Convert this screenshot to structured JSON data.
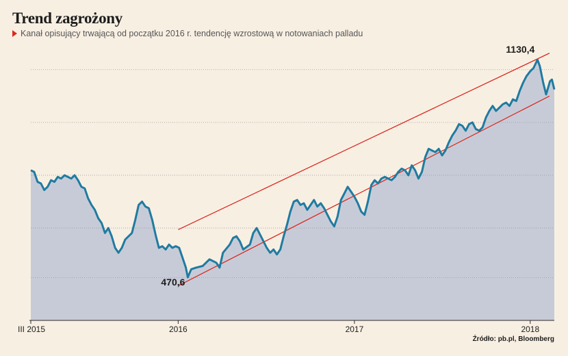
{
  "header": {
    "title": "Trend zagrożony",
    "subtitle": "Kanał opisujący trwającą od początku 2016 r. tendencję wzrostową w notowaniach palladu"
  },
  "source": "Źródło: pb.pl, Bloomberg",
  "colors": {
    "background": "#f8efe3",
    "area": "#c7cbd8",
    "line": "#1f7ba0",
    "channel": "#d92b20",
    "grid": "#9a9a9a"
  },
  "chart_data": {
    "type": "area",
    "title": "Trend zagrożony",
    "x_ticks": [
      "III 2015",
      "2016",
      "2017",
      "2018"
    ],
    "x_tick_dates": [
      "2015-03-01",
      "2016-01-01",
      "2017-01-01",
      "2018-01-01"
    ],
    "x_range": [
      "2015-03-01",
      "2018-02-20"
    ],
    "ylim": [
      340,
      1170
    ],
    "grid_y": [
      470,
      620,
      780,
      940,
      1100
    ],
    "grid": "horizontal dotted",
    "annotations": [
      {
        "text": "470,6",
        "date": "2016-01-21",
        "value": 470.6
      },
      {
        "text": "1130,4",
        "date": "2018-01-16",
        "value": 1130.4
      }
    ],
    "channel_lines": [
      {
        "name": "upper",
        "start": {
          "date": "2016-01-01",
          "value": 615
        },
        "end": {
          "date": "2018-02-10",
          "value": 1150
        }
      },
      {
        "name": "lower",
        "start": {
          "date": "2016-01-01",
          "value": 445
        },
        "end": {
          "date": "2018-02-10",
          "value": 1020
        }
      }
    ],
    "series": [
      {
        "points": [
          [
            "2015-03-01",
            795
          ],
          [
            "2015-03-08",
            790
          ],
          [
            "2015-03-15",
            760
          ],
          [
            "2015-03-22",
            755
          ],
          [
            "2015-03-29",
            735
          ],
          [
            "2015-04-05",
            745
          ],
          [
            "2015-04-12",
            765
          ],
          [
            "2015-04-19",
            760
          ],
          [
            "2015-04-26",
            775
          ],
          [
            "2015-05-03",
            770
          ],
          [
            "2015-05-10",
            780
          ],
          [
            "2015-05-17",
            775
          ],
          [
            "2015-05-24",
            770
          ],
          [
            "2015-05-31",
            780
          ],
          [
            "2015-06-07",
            765
          ],
          [
            "2015-06-14",
            745
          ],
          [
            "2015-06-21",
            740
          ],
          [
            "2015-06-28",
            710
          ],
          [
            "2015-07-05",
            690
          ],
          [
            "2015-07-12",
            675
          ],
          [
            "2015-07-19",
            650
          ],
          [
            "2015-07-26",
            635
          ],
          [
            "2015-08-02",
            605
          ],
          [
            "2015-08-09",
            620
          ],
          [
            "2015-08-16",
            595
          ],
          [
            "2015-08-23",
            560
          ],
          [
            "2015-08-30",
            545
          ],
          [
            "2015-09-06",
            560
          ],
          [
            "2015-09-13",
            585
          ],
          [
            "2015-09-20",
            595
          ],
          [
            "2015-09-27",
            605
          ],
          [
            "2015-10-04",
            645
          ],
          [
            "2015-10-11",
            690
          ],
          [
            "2015-10-18",
            700
          ],
          [
            "2015-10-25",
            685
          ],
          [
            "2015-11-01",
            680
          ],
          [
            "2015-11-08",
            645
          ],
          [
            "2015-11-15",
            600
          ],
          [
            "2015-11-22",
            560
          ],
          [
            "2015-11-29",
            565
          ],
          [
            "2015-12-06",
            555
          ],
          [
            "2015-12-13",
            570
          ],
          [
            "2015-12-20",
            560
          ],
          [
            "2015-12-27",
            565
          ],
          [
            "2016-01-03",
            560
          ],
          [
            "2016-01-10",
            530
          ],
          [
            "2016-01-17",
            500
          ],
          [
            "2016-01-21",
            470.6
          ],
          [
            "2016-01-28",
            495
          ],
          [
            "2016-02-07",
            500
          ],
          [
            "2016-02-21",
            505
          ],
          [
            "2016-03-06",
            525
          ],
          [
            "2016-03-20",
            515
          ],
          [
            "2016-03-27",
            500
          ],
          [
            "2016-04-03",
            545
          ],
          [
            "2016-04-17",
            570
          ],
          [
            "2016-04-24",
            590
          ],
          [
            "2016-05-01",
            595
          ],
          [
            "2016-05-08",
            580
          ],
          [
            "2016-05-15",
            555
          ],
          [
            "2016-05-29",
            570
          ],
          [
            "2016-06-05",
            605
          ],
          [
            "2016-06-12",
            620
          ],
          [
            "2016-06-19",
            600
          ],
          [
            "2016-06-26",
            580
          ],
          [
            "2016-07-03",
            560
          ],
          [
            "2016-07-10",
            545
          ],
          [
            "2016-07-17",
            555
          ],
          [
            "2016-07-24",
            540
          ],
          [
            "2016-07-31",
            555
          ],
          [
            "2016-08-07",
            595
          ],
          [
            "2016-08-14",
            630
          ],
          [
            "2016-08-21",
            670
          ],
          [
            "2016-08-28",
            700
          ],
          [
            "2016-09-04",
            705
          ],
          [
            "2016-09-11",
            690
          ],
          [
            "2016-09-18",
            695
          ],
          [
            "2016-09-25",
            675
          ],
          [
            "2016-10-02",
            690
          ],
          [
            "2016-10-09",
            705
          ],
          [
            "2016-10-16",
            685
          ],
          [
            "2016-10-23",
            695
          ],
          [
            "2016-10-30",
            680
          ],
          [
            "2016-11-06",
            660
          ],
          [
            "2016-11-13",
            640
          ],
          [
            "2016-11-20",
            625
          ],
          [
            "2016-11-27",
            655
          ],
          [
            "2016-12-04",
            705
          ],
          [
            "2016-12-11",
            725
          ],
          [
            "2016-12-18",
            745
          ],
          [
            "2016-12-25",
            730
          ],
          [
            "2017-01-01",
            715
          ],
          [
            "2017-01-08",
            695
          ],
          [
            "2017-01-15",
            670
          ],
          [
            "2017-01-22",
            660
          ],
          [
            "2017-01-29",
            700
          ],
          [
            "2017-02-05",
            750
          ],
          [
            "2017-02-12",
            765
          ],
          [
            "2017-02-19",
            755
          ],
          [
            "2017-02-26",
            770
          ],
          [
            "2017-03-05",
            775
          ],
          [
            "2017-03-12",
            770
          ],
          [
            "2017-03-19",
            765
          ],
          [
            "2017-03-26",
            775
          ],
          [
            "2017-04-02",
            790
          ],
          [
            "2017-04-09",
            800
          ],
          [
            "2017-04-16",
            795
          ],
          [
            "2017-04-23",
            780
          ],
          [
            "2017-04-30",
            810
          ],
          [
            "2017-05-07",
            795
          ],
          [
            "2017-05-14",
            770
          ],
          [
            "2017-05-21",
            790
          ],
          [
            "2017-05-28",
            835
          ],
          [
            "2017-06-04",
            860
          ],
          [
            "2017-06-11",
            855
          ],
          [
            "2017-06-18",
            850
          ],
          [
            "2017-06-25",
            860
          ],
          [
            "2017-07-02",
            840
          ],
          [
            "2017-07-09",
            855
          ],
          [
            "2017-07-16",
            880
          ],
          [
            "2017-07-23",
            900
          ],
          [
            "2017-07-30",
            915
          ],
          [
            "2017-08-06",
            935
          ],
          [
            "2017-08-13",
            930
          ],
          [
            "2017-08-20",
            915
          ],
          [
            "2017-08-27",
            935
          ],
          [
            "2017-09-03",
            940
          ],
          [
            "2017-09-10",
            920
          ],
          [
            "2017-09-17",
            915
          ],
          [
            "2017-09-24",
            925
          ],
          [
            "2017-10-01",
            955
          ],
          [
            "2017-10-08",
            975
          ],
          [
            "2017-10-15",
            990
          ],
          [
            "2017-10-22",
            975
          ],
          [
            "2017-10-29",
            985
          ],
          [
            "2017-11-05",
            995
          ],
          [
            "2017-11-12",
            1000
          ],
          [
            "2017-11-19",
            990
          ],
          [
            "2017-11-26",
            1010
          ],
          [
            "2017-12-03",
            1005
          ],
          [
            "2017-12-10",
            1035
          ],
          [
            "2017-12-17",
            1060
          ],
          [
            "2017-12-24",
            1080
          ],
          [
            "2018-01-01",
            1095
          ],
          [
            "2018-01-08",
            1105
          ],
          [
            "2018-01-16",
            1130.4
          ],
          [
            "2018-01-21",
            1110
          ],
          [
            "2018-01-28",
            1060
          ],
          [
            "2018-02-03",
            1025
          ],
          [
            "2018-02-07",
            1045
          ],
          [
            "2018-02-11",
            1065
          ],
          [
            "2018-02-15",
            1070
          ],
          [
            "2018-02-20",
            1040
          ]
        ]
      }
    ]
  }
}
